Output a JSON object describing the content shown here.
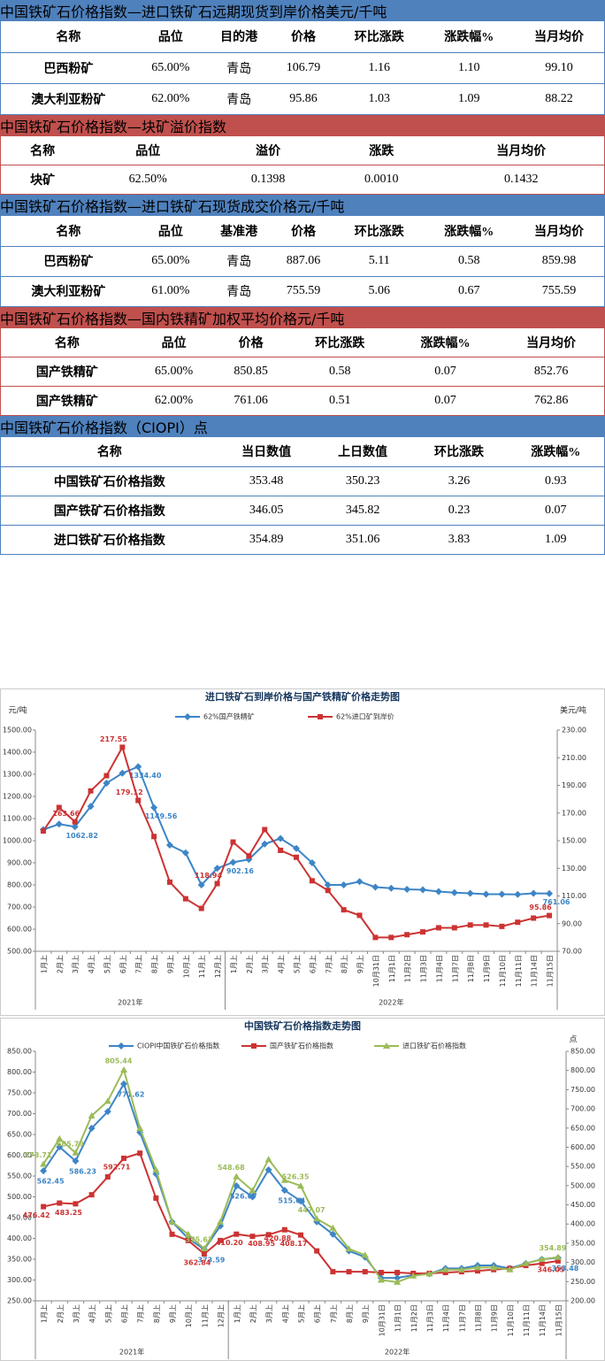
{
  "tables": [
    {
      "title": "中国铁矿石价格指数—进口铁矿石远期现货到岸价格",
      "unit": "美元/千吨",
      "color": "#4f81bd",
      "columns": [
        "名称",
        "品位",
        "目的港",
        "价格",
        "环比涨跌",
        "涨跌幅%",
        "当月均价"
      ],
      "rows": [
        [
          "巴西粉矿",
          "65.00%",
          "青岛",
          "106.79",
          "1.16",
          "1.10",
          "99.10"
        ],
        [
          "澳大利亚粉矿",
          "62.00%",
          "青岛",
          "95.86",
          "1.03",
          "1.09",
          "88.22"
        ]
      ]
    },
    {
      "title": "中国铁矿石价格指数—块矿溢价指数",
      "color": "#c0504d",
      "columns": [
        "名称",
        "品位",
        "溢价",
        "涨跌",
        "当月均价"
      ],
      "rows": [
        [
          "块矿",
          "62.50%",
          "0.1398",
          "0.0010",
          "0.1432"
        ]
      ]
    },
    {
      "title": "中国铁矿石价格指数—进口铁矿石现货成交价格",
      "unit": "元/千吨",
      "color": "#4f81bd",
      "columns": [
        "名称",
        "品位",
        "基准港",
        "价格",
        "环比涨跌",
        "涨跌幅%",
        "当月均价"
      ],
      "rows": [
        [
          "巴西粉矿",
          "65.00%",
          "青岛",
          "887.06",
          "5.11",
          "0.58",
          "859.98"
        ],
        [
          "澳大利亚粉矿",
          "61.00%",
          "青岛",
          "755.59",
          "5.06",
          "0.67",
          "755.59"
        ]
      ]
    },
    {
      "title": "中国铁矿石价格指数—国内铁精矿加权平均价格",
      "unit": "元/千吨",
      "color": "#c0504d",
      "columns": [
        "名称",
        "品位",
        "价格",
        "环比涨跌",
        "涨跌幅%",
        "当月均价"
      ],
      "rows": [
        [
          "国产铁精矿",
          "65.00%",
          "850.85",
          "0.58",
          "0.07",
          "852.76"
        ],
        [
          "国产铁精矿",
          "62.00%",
          "761.06",
          "0.51",
          "0.07",
          "762.86"
        ]
      ]
    },
    {
      "title": "中国铁矿石价格指数（CIOPI）",
      "unit": "点",
      "color": "#4f81bd",
      "columns": [
        "名称",
        "当日数值",
        "上日数值",
        "环比涨跌",
        "涨跌幅%"
      ],
      "rows": [
        [
          "中国铁矿石价格指数",
          "353.48",
          "350.23",
          "3.26",
          "0.93"
        ],
        [
          "国产铁矿石价格指数",
          "346.05",
          "345.82",
          "0.23",
          "0.07"
        ],
        [
          "进口铁矿石价格指数",
          "354.89",
          "351.06",
          "3.83",
          "1.09"
        ]
      ]
    }
  ],
  "chart_data": [
    {
      "type": "line",
      "title": "进口铁矿石到岸价格与国产铁精矿价格走势图",
      "y_label": "元/吨",
      "y2_label": "美元/吨",
      "legend": "top",
      "grid": false,
      "category_groups": [
        {
          "label": "2021年",
          "categories": [
            "1月上",
            "2月上",
            "3月上",
            "4月上",
            "5月上",
            "6月上",
            "7月上",
            "8月上",
            "9月上",
            "10月上",
            "11月上",
            "12月上"
          ]
        },
        {
          "label": "2022年",
          "categories": [
            "1月上",
            "2月上",
            "3月上",
            "4月上",
            "5月上",
            "6月上",
            "7月上",
            "8月上",
            "9月上",
            "10月31日",
            "11月1日",
            "11月2日",
            "11月3日",
            "11月4日",
            "11月7日",
            "11月8日",
            "11月9日",
            "11月10日",
            "11月11日",
            "11月14日",
            "11月15日"
          ]
        }
      ],
      "ylim": [
        500,
        1500
      ],
      "yticks": [
        {
          "value": 500,
          "label": "500.00"
        },
        {
          "value": 600,
          "label": "600.00"
        },
        {
          "value": 700,
          "label": "700.00"
        },
        {
          "value": 800,
          "label": "800.00"
        },
        {
          "value": 900,
          "label": "900.00"
        },
        {
          "value": 1000,
          "label": "1000.00"
        },
        {
          "value": 1100,
          "label": "1100.00"
        },
        {
          "value": 1200,
          "label": "1200.00"
        },
        {
          "value": 1300,
          "label": "1300.00"
        },
        {
          "value": 1400,
          "label": "1400.00"
        },
        {
          "value": 1500,
          "label": "1500.00"
        }
      ],
      "y2lim": [
        70,
        230
      ],
      "y2ticks": [
        {
          "value": 70,
          "label": "70.00"
        },
        {
          "value": 90,
          "label": "90.00"
        },
        {
          "value": 110,
          "label": "110.00"
        },
        {
          "value": 130,
          "label": "130.00"
        },
        {
          "value": 150,
          "label": "150.00"
        },
        {
          "value": 170,
          "label": "170.00"
        },
        {
          "value": 190,
          "label": "190.00"
        },
        {
          "value": 210,
          "label": "210.00"
        },
        {
          "value": 230,
          "label": "230.00"
        }
      ],
      "series": [
        {
          "name": "62%国产铁精矿",
          "color": "#3d85c6",
          "marker": "diamond",
          "values": [
            1050,
            1075,
            1062.82,
            1155,
            1260,
            1305,
            1334.4,
            1149.56,
            980,
            945,
            800,
            875,
            902.16,
            915,
            985,
            1010,
            965,
            900,
            800,
            800,
            815,
            790,
            785,
            780,
            778,
            770,
            765,
            762,
            758,
            758,
            757,
            762,
            761.06
          ],
          "value_labels": [
            null,
            null,
            "1062.82",
            null,
            null,
            null,
            "1334.40",
            "1149.56",
            null,
            null,
            null,
            null,
            "902.16",
            null,
            null,
            null,
            null,
            null,
            null,
            null,
            null,
            null,
            null,
            null,
            null,
            null,
            null,
            null,
            null,
            null,
            null,
            null,
            "761.06"
          ]
        },
        {
          "name": "62%进口矿到岸价",
          "color": "#cc3333",
          "marker": "square",
          "axis": "y2",
          "values": [
            157,
            174,
            163.66,
            186,
            197,
            217.55,
            179.12,
            153,
            120,
            108,
            101,
            118.94,
            149,
            139,
            158,
            143,
            138,
            121,
            114,
            100,
            96,
            80,
            80,
            82,
            84,
            87,
            87,
            89,
            89,
            88,
            91,
            94,
            95.86
          ],
          "value_labels": [
            null,
            null,
            "163.66",
            null,
            null,
            "217.55",
            "179.12",
            null,
            null,
            null,
            null,
            "118.94",
            null,
            null,
            null,
            null,
            null,
            null,
            null,
            null,
            null,
            null,
            null,
            null,
            null,
            null,
            null,
            null,
            null,
            null,
            null,
            null,
            "95.86"
          ]
        }
      ]
    },
    {
      "type": "line",
      "title": "中国铁矿石价格指数走势图",
      "y2_label": "点",
      "legend": "top",
      "grid": false,
      "category_groups": [
        {
          "label": "2021年",
          "categories": [
            "1月上",
            "2月上",
            "3月上",
            "4月上",
            "5月上",
            "6月上",
            "7月上",
            "8月上",
            "9月上",
            "10月上",
            "11月上",
            "12月上"
          ]
        },
        {
          "label": "2022年",
          "categories": [
            "1月上",
            "2月上",
            "3月上",
            "4月上",
            "5月上",
            "6月上",
            "7月上",
            "8月上",
            "9月上",
            "10月31日",
            "11月1日",
            "11月2日",
            "11月3日",
            "11月4日",
            "11月7日",
            "11月8日",
            "11月9日",
            "11月10日",
            "11月11日",
            "11月14日",
            "11月15日"
          ]
        }
      ],
      "ylim": [
        250,
        850
      ],
      "yticks": [
        {
          "value": 250,
          "label": "250.00"
        },
        {
          "value": 300,
          "label": "300.00"
        },
        {
          "value": 350,
          "label": "350.00"
        },
        {
          "value": 400,
          "label": "400.00"
        },
        {
          "value": 450,
          "label": "450.00"
        },
        {
          "value": 500,
          "label": "500.00"
        },
        {
          "value": 550,
          "label": "550.00"
        },
        {
          "value": 600,
          "label": "600.00"
        },
        {
          "value": 650,
          "label": "650.00"
        },
        {
          "value": 700,
          "label": "700.00"
        },
        {
          "value": 750,
          "label": "750.00"
        },
        {
          "value": 800,
          "label": "800.00"
        },
        {
          "value": 850,
          "label": "850.00"
        }
      ],
      "y2lim": [
        200,
        850
      ],
      "y2ticks": [
        {
          "value": 200,
          "label": "200.00"
        },
        {
          "value": 250,
          "label": "250.00"
        },
        {
          "value": 300,
          "label": "300.00"
        },
        {
          "value": 350,
          "label": "350.00"
        },
        {
          "value": 400,
          "label": "400.00"
        },
        {
          "value": 450,
          "label": "450.00"
        },
        {
          "value": 500,
          "label": "500.00"
        },
        {
          "value": 550,
          "label": "550.00"
        },
        {
          "value": 600,
          "label": "600.00"
        },
        {
          "value": 650,
          "label": "650.00"
        },
        {
          "value": 700,
          "label": "700.00"
        },
        {
          "value": 750,
          "label": "750.00"
        },
        {
          "value": 800,
          "label": "800.00"
        },
        {
          "value": 850,
          "label": "850.00"
        }
      ],
      "series": [
        {
          "name": "CIOPI中国铁矿石价格指数",
          "color": "#3d85c6",
          "marker": "diamond",
          "values": [
            562.45,
            620,
            586.23,
            665,
            705,
            771.62,
            655,
            555,
            440,
            400,
            373.59,
            430,
            526.67,
            500,
            565,
            515.64,
            490,
            440,
            410,
            370,
            355,
            305,
            305,
            312,
            315,
            328,
            328,
            335,
            335,
            328,
            340,
            350,
            353.48
          ],
          "value_labels": [
            "562.45",
            null,
            "586.23",
            null,
            null,
            "771.62",
            null,
            null,
            null,
            null,
            "373.59",
            null,
            "526.67",
            null,
            null,
            "515.64",
            null,
            null,
            null,
            null,
            null,
            null,
            null,
            null,
            null,
            null,
            null,
            null,
            null,
            null,
            null,
            null,
            "353.48"
          ]
        },
        {
          "name": "国产铁矿石价格指数",
          "color": "#cc3333",
          "marker": "square",
          "values": [
            476.42,
            485,
            483.25,
            505,
            548,
            592.71,
            605,
            497,
            410,
            395,
            362.84,
            395,
            410.2,
            405,
            408.95,
            420.88,
            408.17,
            370,
            320,
            320,
            320,
            318,
            318,
            316,
            316,
            318,
            320,
            322,
            325,
            328,
            335,
            340,
            346.05
          ],
          "value_labels": [
            "476.42",
            null,
            "483.25",
            null,
            null,
            "592.71",
            null,
            null,
            null,
            null,
            "362.84",
            null,
            "410.20",
            null,
            "408.95",
            "420.88",
            "408.17",
            null,
            null,
            null,
            null,
            null,
            null,
            null,
            null,
            null,
            null,
            null,
            null,
            null,
            null,
            null,
            "346.05"
          ]
        },
        {
          "name": "进口铁矿石价格指数",
          "color": "#9bbb59",
          "marker": "triangle",
          "values": [
            578.71,
            640,
            605.79,
            695,
            730,
            805.44,
            665,
            565,
            440,
            410,
            375.63,
            440,
            548.68,
            515,
            590,
            540,
            526.35,
            447.07,
            425,
            375,
            360,
            300,
            295,
            310,
            315,
            325,
            325,
            330,
            330,
            325,
            340,
            350,
            354.89
          ],
          "value_labels": [
            "578.71",
            null,
            "605.79",
            null,
            null,
            "805.44",
            null,
            null,
            null,
            null,
            "375.63",
            null,
            "548.68",
            null,
            null,
            null,
            "526.35",
            "447.07",
            null,
            null,
            null,
            null,
            null,
            null,
            null,
            null,
            null,
            null,
            null,
            null,
            null,
            null,
            "354.89"
          ]
        }
      ]
    }
  ]
}
